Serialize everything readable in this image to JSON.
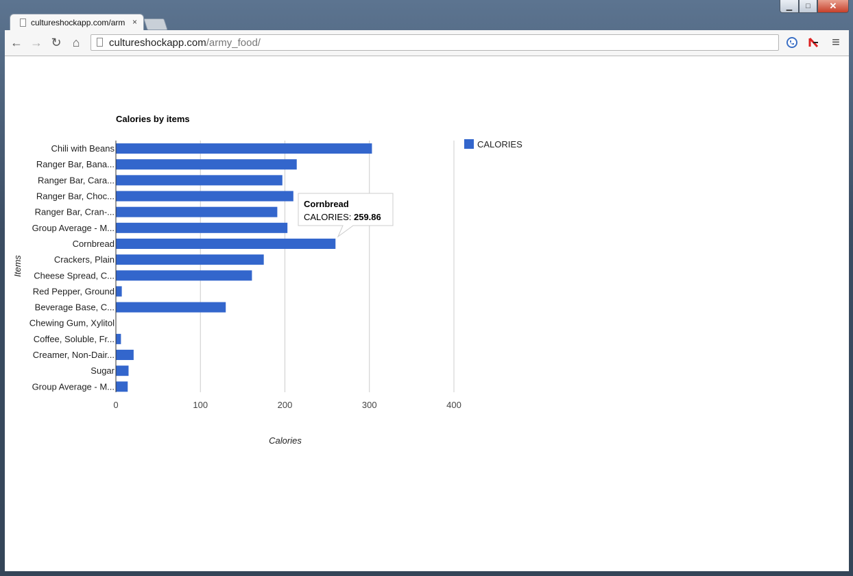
{
  "browser": {
    "tab_title": "cultureshockapp.com/arm",
    "tab_close": "×",
    "url_host": "cultureshockapp.com",
    "url_path": "/army_food/",
    "controls": {
      "minimize": "▁",
      "maximize": "□",
      "close": "✕"
    },
    "nav": {
      "back": "←",
      "forward": "→",
      "reload": "↻",
      "home": "⌂",
      "menu": "≡"
    }
  },
  "chart_data": {
    "type": "bar",
    "orientation": "horizontal",
    "title": "Calories by items",
    "xlabel": "Calories",
    "ylabel": "Items",
    "xlim": [
      0,
      400
    ],
    "xticks": [
      "0",
      "100",
      "200",
      "300",
      "400"
    ],
    "grid": true,
    "legend_position": "right",
    "categories": [
      "Chili with Beans",
      "Ranger Bar, Bana...",
      "Ranger Bar, Cara...",
      "Ranger Bar, Choc...",
      "Ranger Bar, Cran-...",
      "Group Average - M...",
      "Cornbread",
      "Crackers, Plain",
      "Cheese Spread, C...",
      "Red Pepper, Ground",
      "Beverage Base, C...",
      "Chewing Gum, Xylitol",
      "Coffee, Soluble, Fr...",
      "Creamer, Non-Dair...",
      "Sugar",
      "Group Average - M..."
    ],
    "series": [
      {
        "name": "CALORIES",
        "color": "#3366cc",
        "values": [
          303,
          214,
          197,
          210,
          191,
          203,
          259.86,
          175,
          161,
          7,
          130,
          0,
          6,
          21,
          15,
          14
        ]
      }
    ],
    "tooltip": {
      "category": "Cornbread",
      "label": "CALORIES:",
      "value": "259.86"
    }
  }
}
